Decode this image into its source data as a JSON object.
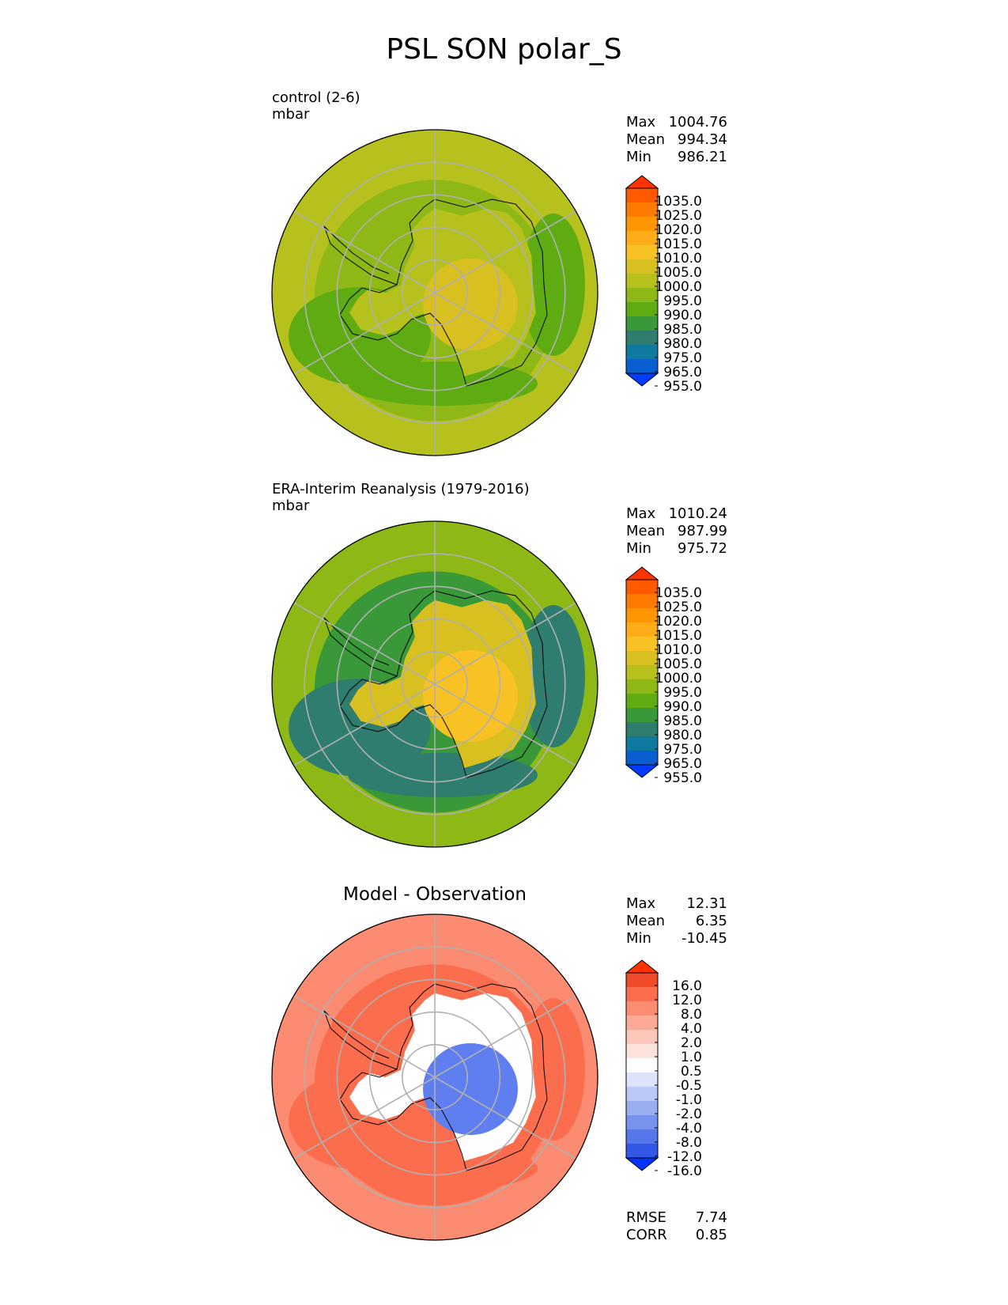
{
  "title": "PSL SON polar_S",
  "panels": [
    {
      "name": "test",
      "label": "control (2-6)",
      "units": "mbar",
      "stats": {
        "max_label": "Max",
        "max": "1004.76",
        "mean_label": "Mean",
        "mean": "994.34",
        "min_label": "Min",
        "min": "986.21"
      },
      "colorbar_ticks": [
        "1035.0",
        "1025.0",
        "1020.0",
        "1015.0",
        "1010.0",
        "1005.0",
        "1000.0",
        "995.0",
        "990.0",
        "985.0",
        "980.0",
        "975.0",
        "965.0",
        "955.0"
      ],
      "colorbar_colors": [
        "#ff3300",
        "#ff5a00",
        "#ff7a00",
        "#ff9500",
        "#ffac18",
        "#f8c224",
        "#d8c021",
        "#b6c11e",
        "#8eb815",
        "#5fab12",
        "#399838",
        "#2f7d6e",
        "#0e7aa0",
        "#0a5fd0",
        "#003cff"
      ],
      "field_colors": {
        "outer": "#b6c11e",
        "ring": "#8eb815",
        "low": "#5fab12",
        "interior": "#b6c11e",
        "high": "#d8c021"
      }
    },
    {
      "name": "reference",
      "label": "ERA-Interim Reanalysis (1979-2016)",
      "units": "mbar",
      "stats": {
        "max_label": "Max",
        "max": "1010.24",
        "mean_label": "Mean",
        "mean": "987.99",
        "min_label": "Min",
        "min": "975.72"
      },
      "colorbar_ticks": [
        "1035.0",
        "1025.0",
        "1020.0",
        "1015.0",
        "1010.0",
        "1005.0",
        "1000.0",
        "995.0",
        "990.0",
        "985.0",
        "980.0",
        "975.0",
        "965.0",
        "955.0"
      ],
      "colorbar_colors": [
        "#ff3300",
        "#ff5a00",
        "#ff7a00",
        "#ff9500",
        "#ffac18",
        "#f8c224",
        "#d8c021",
        "#b6c11e",
        "#8eb815",
        "#5fab12",
        "#399838",
        "#2f7d6e",
        "#0e7aa0",
        "#0a5fd0",
        "#003cff"
      ],
      "field_colors": {
        "outer": "#8eb815",
        "ring": "#399838",
        "low": "#2f7d6e",
        "interior": "#d8c021",
        "high": "#f8c224"
      }
    },
    {
      "name": "difference",
      "title": "Model - Observation",
      "stats": {
        "max_label": "Max",
        "max": "12.31",
        "mean_label": "Mean",
        "mean": "6.35",
        "min_label": "Min",
        "min": "-10.45"
      },
      "colorbar_ticks": [
        "16.0",
        "12.0",
        "8.0",
        "4.0",
        "2.0",
        "1.0",
        "0.5",
        "-0.5",
        "-1.0",
        "-2.0",
        "-4.0",
        "-8.0",
        "-12.0",
        "-16.0"
      ],
      "colorbar_colors": [
        "#ff3300",
        "#f04a2a",
        "#fb6d4c",
        "#fc8c72",
        "#fcaa95",
        "#fcc7b8",
        "#fde3dc",
        "#ffffff",
        "#dde3fb",
        "#bcc8f6",
        "#9aaef2",
        "#7893ee",
        "#5577ea",
        "#3358e6",
        "#0033ff"
      ],
      "field_colors": {
        "outer": "#fb8c72",
        "ring": "#fb6d4c",
        "low": "#fb6d4c",
        "interior": "#ffffff",
        "high": "#5f7ff0"
      },
      "metrics": {
        "rmse_label": "RMSE",
        "rmse": "7.74",
        "corr_label": "CORR",
        "corr": "0.85"
      }
    }
  ]
}
